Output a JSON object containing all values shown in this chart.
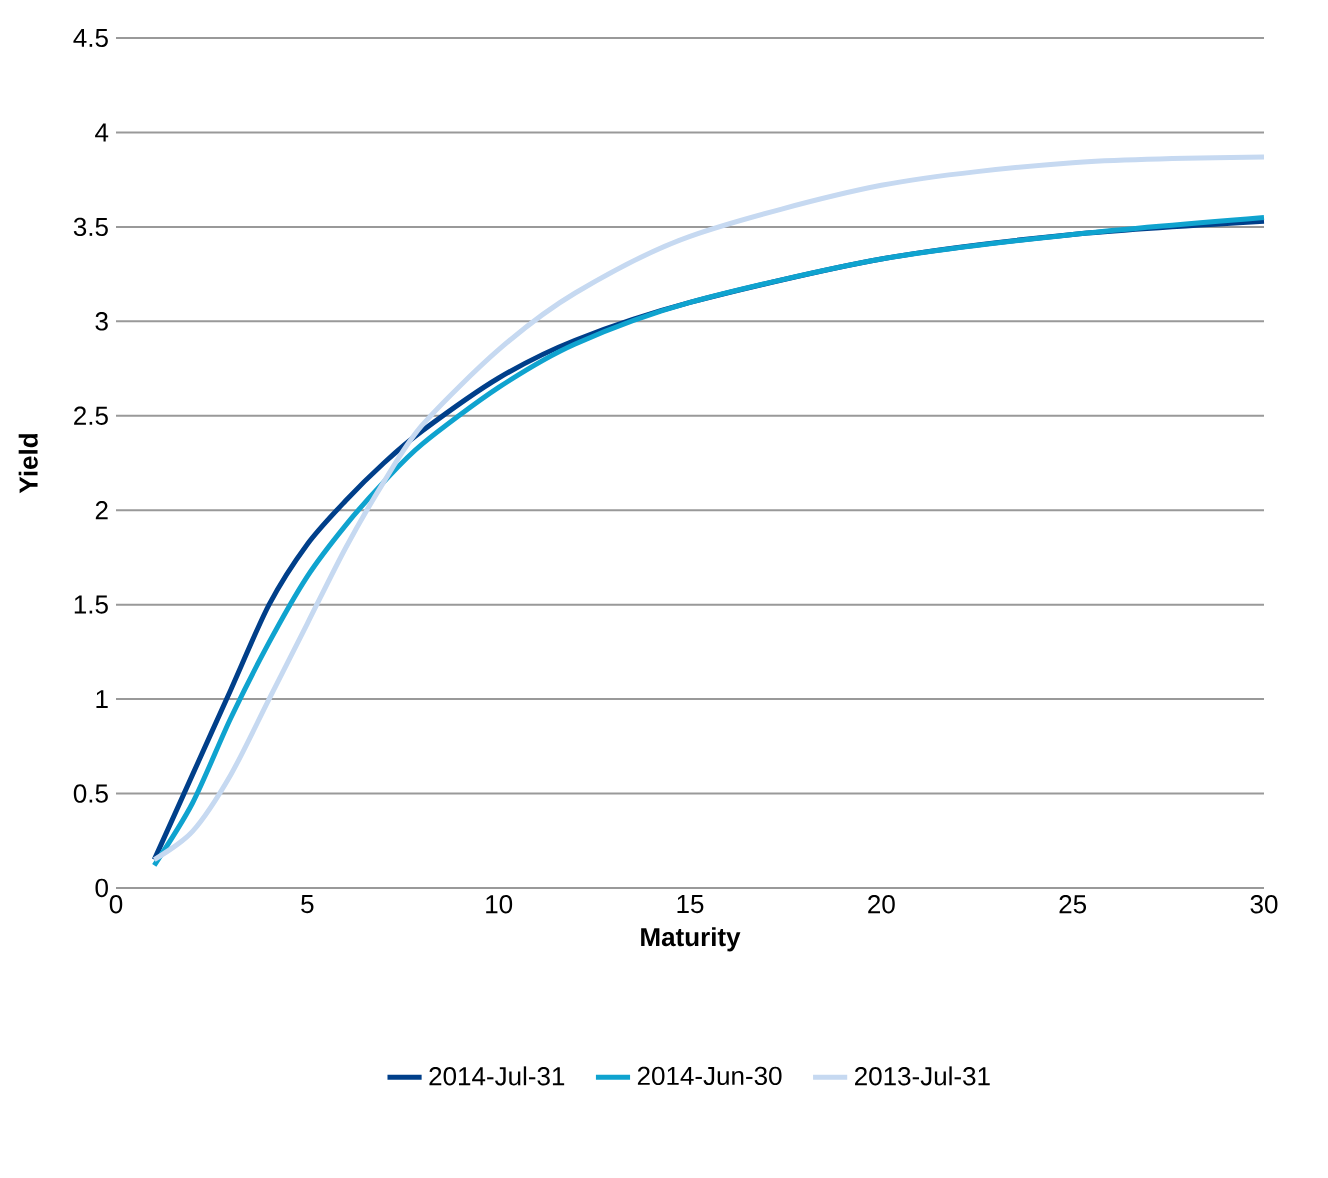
{
  "chart_data": {
    "type": "line",
    "xlabel": "Maturity",
    "ylabel": "Yield",
    "x": [
      1,
      2,
      3,
      4,
      5,
      6,
      7,
      8,
      10,
      12,
      15,
      20,
      25,
      30
    ],
    "series": [
      {
        "name": "2014-Jul-31",
        "color": "#003f8a",
        "values": [
          0.15,
          0.6,
          1.05,
          1.5,
          1.82,
          2.05,
          2.25,
          2.42,
          2.7,
          2.9,
          3.1,
          3.33,
          3.46,
          3.53
        ]
      },
      {
        "name": "2014-Jun-30",
        "color": "#0fa3cf",
        "values": [
          0.12,
          0.45,
          0.9,
          1.3,
          1.65,
          1.92,
          2.15,
          2.35,
          2.65,
          2.88,
          3.1,
          3.33,
          3.46,
          3.55
        ]
      },
      {
        "name": "2013-Jul-31",
        "color": "#c6d9f1",
        "values": [
          0.15,
          0.3,
          0.6,
          1.0,
          1.4,
          1.8,
          2.15,
          2.45,
          2.85,
          3.15,
          3.45,
          3.72,
          3.84,
          3.87
        ]
      }
    ],
    "xlim": [
      0,
      30
    ],
    "xticks": [
      0,
      5,
      10,
      15,
      20,
      25,
      30
    ],
    "ylim": [
      0,
      4.5
    ],
    "yticks": [
      0,
      0.5,
      1,
      1.5,
      2,
      2.5,
      3,
      3.5,
      4,
      4.5
    ],
    "grid": "y",
    "legend": "bottom",
    "marker": "none",
    "line_style": "solid"
  }
}
